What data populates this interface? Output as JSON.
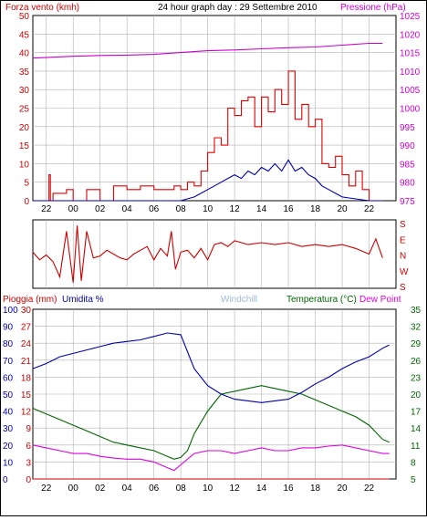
{
  "title": "24 hour graph day : 29 Settembre 2010",
  "colors": {
    "wind": "#e00000",
    "gust": "#e00000",
    "pressure": "#cc00cc",
    "direction": "#cc0000",
    "humidity": "#0000aa",
    "temperature": "#006600",
    "rain": "#cc0000",
    "windchill": "#99bbdd",
    "dewpoint": "#dd00dd",
    "grid": "#b0b0b0",
    "axis_text_red": "#cc0000",
    "axis_text_blue": "#0000aa",
    "axis_text_green": "#006600",
    "axis_text_magenta": "#cc00cc"
  },
  "x_hour_labels": [
    "22",
    "00",
    "02",
    "04",
    "06",
    "08",
    "10",
    "12",
    "14",
    "16",
    "18",
    "20",
    "22"
  ],
  "chart_data": [
    {
      "type": "line",
      "panel": "wind-pressure",
      "labels": {
        "left": "Forza vento (kmh)",
        "right": "Pressione (hPa)"
      },
      "y_left_ticks": [
        "0",
        "5",
        "10",
        "15",
        "20",
        "25",
        "30",
        "35",
        "40",
        "45",
        "50"
      ],
      "y_right_ticks": [
        "975",
        "980",
        "985",
        "990",
        "995",
        "1000",
        "1005",
        "1010",
        "1015",
        "1020",
        "1025"
      ],
      "ylim_left": [
        0,
        50
      ],
      "ylim_right": [
        975,
        1025
      ],
      "x_hours_range": [
        -3,
        24
      ],
      "series": [
        {
          "key": "gust",
          "x": [
            -3,
            -1.8,
            -1.7,
            -1.5,
            -0.5,
            0,
            1,
            2,
            3,
            4,
            5,
            6,
            7,
            7.5,
            8,
            8.5,
            9,
            9.5,
            10,
            10.5,
            11,
            11.5,
            12,
            12.5,
            13,
            13.5,
            14,
            14.5,
            15,
            15.5,
            16,
            16.5,
            17,
            17.5,
            18,
            18.5,
            19,
            19.5,
            20,
            20.5,
            21,
            21.5,
            22,
            23
          ],
          "y": [
            0,
            7,
            0,
            2,
            3,
            0,
            3,
            0,
            4,
            3,
            4,
            3,
            3,
            4,
            3,
            5,
            4,
            8,
            13,
            17,
            15,
            25,
            23,
            27,
            28,
            20,
            28,
            24,
            30,
            26,
            35,
            22,
            26,
            20,
            22,
            10,
            9,
            12,
            7,
            4,
            8,
            3,
            0,
            0
          ]
        },
        {
          "key": "wind",
          "x": [
            -3,
            8,
            9,
            9.5,
            10,
            10.5,
            11,
            11.5,
            12,
            12.5,
            13,
            13.5,
            14,
            14.5,
            15,
            15.5,
            16,
            16.5,
            17,
            17.5,
            18,
            18.5,
            19,
            19.5,
            20,
            21,
            22,
            23
          ],
          "y": [
            0,
            0,
            1,
            2,
            3,
            4,
            5,
            6,
            7,
            6,
            8,
            7,
            9,
            8,
            10,
            8,
            11,
            8,
            9,
            7,
            6,
            4,
            3,
            2,
            1,
            0.5,
            0,
            0
          ]
        },
        {
          "key": "pressure",
          "x": [
            -3,
            0,
            2,
            4,
            6,
            8,
            10,
            12,
            14,
            16,
            18,
            20,
            22,
            23
          ],
          "y": [
            1013.5,
            1014,
            1014.2,
            1014.3,
            1014.5,
            1015,
            1015.5,
            1015.7,
            1016,
            1016.3,
            1016.5,
            1017,
            1017.5,
            1017.5
          ]
        }
      ]
    },
    {
      "type": "line",
      "panel": "wind-direction",
      "labels": {
        "directions": [
          "S",
          "E",
          "N",
          "W",
          "S"
        ]
      },
      "series": [
        {
          "key": "direction",
          "x": [
            -3,
            -2.5,
            -2,
            -1.5,
            -1,
            -0.5,
            0,
            0.3,
            0.6,
            1,
            1.5,
            2,
            2.5,
            3,
            3.5,
            4,
            4.5,
            5,
            5.5,
            6,
            6.5,
            7,
            7.3,
            7.6,
            8,
            8.5,
            9,
            9.5,
            10,
            10.5,
            11,
            11.5,
            12,
            13,
            14,
            15,
            16,
            17,
            18,
            19,
            20,
            21,
            22,
            22.5,
            23
          ],
          "y": [
            190,
            150,
            175,
            140,
            60,
            300,
            30,
            330,
            40,
            300,
            160,
            170,
            200,
            180,
            160,
            150,
            180,
            200,
            220,
            150,
            210,
            170,
            300,
            100,
            190,
            200,
            160,
            210,
            150,
            230,
            240,
            220,
            250,
            230,
            240,
            230,
            240,
            220,
            230,
            220,
            230,
            210,
            180,
            260,
            160
          ]
        }
      ]
    },
    {
      "type": "line",
      "panel": "rain-humidity-temperature",
      "labels": {
        "rain": "Pioggia (mm)",
        "humidity": "Umidita %",
        "windchill": "Windchill",
        "temperature": "Temperatura (°C)",
        "dewpoint": "Dew Point"
      },
      "y_rain_ticks": [
        "0",
        "3",
        "6",
        "9",
        "12",
        "15",
        "18",
        "21",
        "24",
        "27",
        "30"
      ],
      "y_humidity_ticks": [
        "0",
        "10",
        "20",
        "30",
        "40",
        "50",
        "60",
        "70",
        "80",
        "90",
        "100"
      ],
      "y_temp_ticks": [
        "5",
        "8",
        "11",
        "14",
        "17",
        "20",
        "23",
        "26",
        "29",
        "32",
        "35"
      ],
      "ylim_humidity": [
        0,
        100
      ],
      "ylim_temp": [
        5,
        35
      ],
      "series": [
        {
          "key": "humidity",
          "x": [
            -3,
            -2,
            -1,
            0,
            1,
            2,
            3,
            4,
            5,
            6,
            7,
            8,
            8.5,
            9,
            10,
            11,
            12,
            13,
            14,
            15,
            16,
            17,
            18,
            19,
            20,
            21,
            22,
            23,
            23.5
          ],
          "y": [
            65,
            68,
            72,
            74,
            76,
            78,
            80,
            81,
            82,
            84,
            86,
            85,
            75,
            65,
            55,
            50,
            47,
            46,
            45,
            46,
            47,
            51,
            56,
            60,
            65,
            69,
            72,
            77,
            79
          ]
        },
        {
          "key": "temperature",
          "x": [
            -3,
            -2,
            -1,
            0,
            1,
            2,
            3,
            4,
            5,
            6,
            7,
            7.5,
            8,
            8.5,
            9,
            10,
            11,
            12,
            13,
            14,
            15,
            16,
            17,
            18,
            19,
            20,
            21,
            22,
            23,
            23.5
          ],
          "y": [
            17.5,
            16.5,
            15.5,
            14.5,
            13.5,
            12.5,
            11.5,
            11,
            10.5,
            10,
            9,
            8.5,
            8.8,
            10,
            13,
            17,
            20,
            20.5,
            21,
            21.5,
            21,
            20.5,
            20,
            19,
            18,
            17,
            16,
            14.5,
            12,
            11.5
          ]
        },
        {
          "key": "dewpoint",
          "x": [
            -3,
            -2,
            -1,
            0,
            1,
            2,
            3,
            4,
            5,
            6,
            7,
            7.5,
            8,
            9,
            10,
            11,
            12,
            13,
            14,
            15,
            16,
            17,
            18,
            19,
            20,
            21,
            22,
            23,
            23.5
          ],
          "y": [
            11,
            10.5,
            10,
            9.5,
            9.5,
            9,
            8.7,
            8.5,
            8.5,
            8,
            7,
            6.5,
            7.5,
            9.5,
            10,
            10,
            9.5,
            10,
            10.5,
            10,
            10,
            10.5,
            10.5,
            10.8,
            11,
            10.5,
            10,
            9.5,
            9.5
          ]
        },
        {
          "key": "rain",
          "x": [
            -3,
            23.5
          ],
          "y": [
            0,
            0
          ]
        }
      ]
    }
  ]
}
